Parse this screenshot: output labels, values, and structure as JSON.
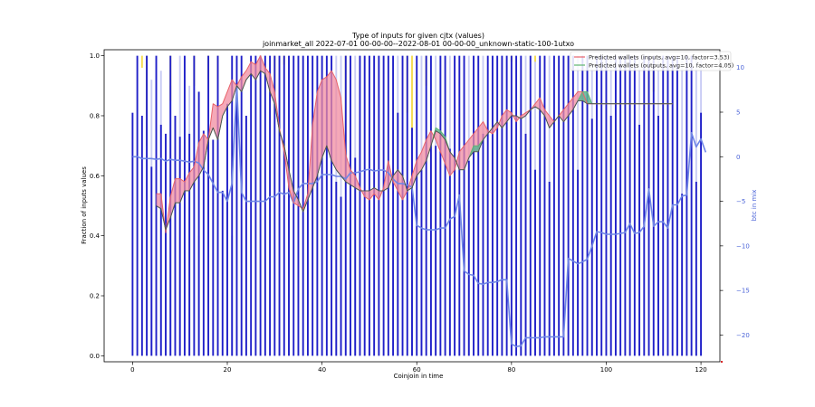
{
  "chart_data": {
    "type": "bar",
    "title": "Type of inputs for given cjtx (values)",
    "subtitle": "joinmarket_all 2022-07-01 00-00-00--2022-08-01 00-00-00_unknown-static-100-1utxo",
    "xlabel": "Coinjoin in time",
    "ylabel": "Fraction of inputs values",
    "ylabel_right": "btc in mix",
    "xlim": [
      -6,
      124
    ],
    "ylim": [
      -0.02,
      1.02
    ],
    "ylim_right": [
      -23,
      12
    ],
    "x_ticks": [
      0,
      20,
      40,
      60,
      80,
      100,
      120
    ],
    "y_ticks": [
      0.0,
      0.2,
      0.4,
      0.6,
      0.8,
      1.0
    ],
    "y_right_ticks": [
      10,
      5,
      0,
      -5,
      -10,
      -15,
      -20
    ],
    "y_right_tick_labels": [
      "10",
      "5",
      "0",
      "−5",
      "−10",
      "−15",
      "−20"
    ],
    "legend_position": "top-right",
    "legend": [
      {
        "label": "Predicted wallets (inputs, avg=10, factor=3.53)",
        "color": "#e8636a"
      },
      {
        "label": "Predicted wallets (outputs, avg=10, factor=4.05)",
        "color": "#5fb56e"
      }
    ],
    "colors": {
      "blue_bars": "#1f1fc8",
      "light_bars": "#c9ccf5",
      "yellow_bars": "#f6dc50",
      "btc_line": "#6f86e6",
      "inputs_line": "#e8636a",
      "inputs_fill": "#f28ca0",
      "outputs_line": "#5fb56e",
      "outputs_fill": "#5fb594",
      "mean_line": "#4d4d4d"
    },
    "bars_x_range": [
      0,
      120
    ],
    "blue_bar_heights": [
      0.81,
      1.0,
      0.8,
      1.0,
      0.63,
      1.0,
      0.77,
      0.74,
      1.0,
      0.8,
      0.73,
      1.0,
      0.74,
      1.0,
      0.88,
      0.75,
      1.0,
      0.72,
      1.0,
      0.55,
      0.84,
      1.0,
      1.0,
      1.0,
      0.8,
      1.0,
      1.0,
      1.0,
      1.0,
      1.0,
      1.0,
      1.0,
      1.0,
      1.0,
      1.0,
      1.0,
      1.0,
      1.0,
      1.0,
      1.0,
      1.0,
      1.0,
      1.0,
      0.58,
      0.53,
      1.0,
      1.0,
      0.66,
      1.0,
      1.0,
      1.0,
      1.0,
      1.0,
      1.0,
      1.0,
      1.0,
      0.81,
      1.0,
      1.0,
      0.76,
      1.0,
      0.62,
      1.0,
      1.0,
      0.7,
      1.0,
      1.0,
      0.69,
      1.0,
      1.0,
      1.0,
      0.65,
      1.0,
      1.0,
      0.74,
      1.0,
      1.0,
      1.0,
      1.0,
      1.0,
      1.0,
      1.0,
      1.0,
      0.74,
      1.0,
      0.62,
      1.0,
      1.0,
      0.58,
      1.0,
      1.0,
      1.0,
      1.0,
      1.0,
      0.62,
      1.0,
      1.0,
      0.79,
      1.0,
      1.0,
      1.0,
      0.8,
      1.0,
      1.0,
      1.0,
      1.0,
      1.0,
      0.77,
      1.0,
      1.0,
      1.0,
      0.8,
      1.0,
      1.0,
      1.0,
      1.0,
      0.54,
      1.0,
      1.0,
      0.58,
      0.81
    ],
    "light_bar_heights": [
      0,
      0,
      0,
      0,
      0.92,
      0,
      0.95,
      0,
      0.9,
      0,
      1.0,
      0,
      0.9,
      0,
      0.4,
      0,
      0,
      0,
      0,
      0,
      0,
      0.4,
      0.1,
      0,
      0,
      0,
      0,
      0,
      0,
      0,
      0,
      0,
      0,
      0,
      0,
      0,
      0,
      0,
      0,
      0,
      0,
      0,
      0,
      1.0,
      1.0,
      0,
      0,
      1.0,
      0,
      0,
      0,
      0,
      0,
      0,
      0,
      0,
      1.0,
      0,
      0,
      1.0,
      0,
      1.0,
      0,
      0,
      1.0,
      0,
      0,
      1.0,
      0,
      0,
      0,
      1.0,
      0,
      0,
      1.0,
      0,
      0,
      0,
      0,
      0,
      0,
      0,
      0,
      1.0,
      0,
      1.0,
      0,
      0,
      1.0,
      0,
      0,
      0,
      0,
      0,
      1.0,
      0,
      0,
      1.0,
      0,
      0,
      0,
      1.0,
      0,
      0,
      0,
      0,
      0,
      1.0,
      0,
      0,
      0,
      1.0,
      0,
      0,
      0,
      0,
      1.0,
      0,
      0,
      1.0,
      1.0
    ],
    "yellow_bars": [
      {
        "x": 2,
        "from": 0.96,
        "to": 1.0
      },
      {
        "x": 3,
        "from": 0.7,
        "to": 1.0
      },
      {
        "x": 8,
        "from": 0.85,
        "to": 1.0
      },
      {
        "x": 13,
        "from": 0.9,
        "to": 1.0
      },
      {
        "x": 16,
        "from": 0.92,
        "to": 1.0
      },
      {
        "x": 18,
        "from": 0.92,
        "to": 1.0
      },
      {
        "x": 30,
        "from": 0.88,
        "to": 1.0
      },
      {
        "x": 32,
        "from": 0.97,
        "to": 1.0
      },
      {
        "x": 45,
        "from": 0.6,
        "to": 1.0
      },
      {
        "x": 58,
        "from": 0.81,
        "to": 1.0
      },
      {
        "x": 59,
        "from": 0.75,
        "to": 1.0
      },
      {
        "x": 62,
        "from": 0.9,
        "to": 1.0
      },
      {
        "x": 80,
        "from": 0.98,
        "to": 1.0
      },
      {
        "x": 85,
        "from": 0.98,
        "to": 1.0
      },
      {
        "x": 109,
        "from": 0.7,
        "to": 1.0
      },
      {
        "x": 110,
        "from": 0.88,
        "to": 1.0
      }
    ],
    "btc_in_mix_x_range": [
      0,
      121
    ],
    "btc_in_mix": [
      0,
      0,
      -0.2,
      -0.2,
      -0.2,
      -0.3,
      -0.2,
      -0.5,
      -0.3,
      -0.4,
      -0.4,
      -0.5,
      -0.6,
      -0.5,
      -0.7,
      -1.5,
      -2,
      -3,
      -4,
      -4,
      -5,
      -3,
      8,
      -4,
      -5,
      -5,
      -5,
      -5,
      -5,
      -4.5,
      -4.5,
      -4,
      -4.2,
      -4,
      -5.2,
      -3.6,
      -3,
      -3,
      -3,
      -2.8,
      -2,
      -2,
      -2,
      -2.2,
      -2.2,
      -2.5,
      -1.8,
      -1.8,
      -1.7,
      -1.5,
      -1.4,
      -1.6,
      -1.5,
      -1.5,
      -1.8,
      -2.5,
      -3,
      -3,
      -3.2,
      -3.4,
      -7.7,
      -8,
      -8.2,
      -8.2,
      -8.2,
      -8,
      -8,
      -7,
      -6.7,
      -4.3,
      -12.8,
      -13.2,
      -13.3,
      -14.2,
      -14.3,
      -14.1,
      -14.1,
      -14,
      -13.8,
      -13.8,
      -21,
      -21.3,
      -21.2,
      -20.3,
      -20.3,
      -20.3,
      -20.3,
      -20.2,
      -20.2,
      -20.2,
      -20.2,
      -20.2,
      -11.4,
      -11.7,
      -12,
      -11.8,
      -11.5,
      -10,
      -8.4,
      -8.5,
      -8.7,
      -8.7,
      -8.7,
      -8.6,
      -8.5,
      -7.5,
      -8.6,
      -8.5,
      -7.8,
      -3.6,
      -7.8,
      -7.3,
      -7.3,
      -8,
      -5.4,
      -5.4,
      -4.4,
      -4.3,
      2.7,
      1.1,
      2,
      0.5
    ],
    "mean_x_range": [
      5,
      114
    ],
    "mean_values": [
      0.5,
      0.49,
      0.42,
      0.46,
      0.51,
      0.51,
      0.55,
      0.55,
      0.58,
      0.6,
      0.63,
      0.72,
      0.76,
      0.72,
      0.8,
      0.83,
      0.85,
      0.9,
      0.88,
      0.92,
      0.94,
      0.92,
      0.95,
      0.94,
      0.88,
      0.84,
      0.75,
      0.7,
      0.62,
      0.55,
      0.52,
      0.48,
      0.52,
      0.56,
      0.6,
      0.66,
      0.7,
      0.65,
      0.62,
      0.6,
      0.58,
      0.57,
      0.56,
      0.55,
      0.55,
      0.55,
      0.56,
      0.55,
      0.55,
      0.56,
      0.6,
      0.62,
      0.6,
      0.55,
      0.56,
      0.6,
      0.62,
      0.65,
      0.7,
      0.75,
      0.74,
      0.72,
      0.68,
      0.66,
      0.62,
      0.62,
      0.66,
      0.68,
      0.68,
      0.72,
      0.74,
      0.76,
      0.78,
      0.76,
      0.78,
      0.8,
      0.8,
      0.79,
      0.8,
      0.82,
      0.83,
      0.82,
      0.8,
      0.76,
      0.78,
      0.8,
      0.78,
      0.8,
      0.82,
      0.85,
      0.85,
      0.84,
      0.84,
      0.84,
      0.84,
      0.84,
      0.84,
      0.84,
      0.84,
      0.84,
      0.84,
      0.84,
      0.84,
      0.84,
      0.84,
      0.84,
      0.84,
      0.84,
      0.84,
      0.84
    ],
    "inputs_x_range": [
      5,
      114
    ],
    "inputs_values": [
      0.54,
      0.54,
      0.41,
      0.53,
      0.59,
      0.59,
      0.58,
      0.61,
      0.63,
      0.71,
      0.74,
      0.72,
      0.84,
      0.83,
      0.84,
      0.88,
      0.92,
      0.9,
      0.93,
      0.95,
      0.98,
      0.97,
      1.0,
      0.96,
      0.94,
      0.88,
      0.76,
      0.68,
      0.56,
      0.51,
      0.5,
      0.49,
      0.54,
      0.77,
      0.88,
      0.92,
      0.93,
      0.95,
      0.92,
      0.86,
      0.67,
      0.62,
      0.6,
      0.56,
      0.53,
      0.52,
      0.54,
      0.52,
      0.56,
      0.65,
      0.58,
      0.55,
      0.52,
      0.55,
      0.6,
      0.65,
      0.68,
      0.72,
      0.75,
      0.72,
      0.68,
      0.64,
      0.6,
      0.62,
      0.68,
      0.7,
      0.72,
      0.74,
      0.76,
      0.78,
      0.75,
      0.74,
      0.76,
      0.8,
      0.82,
      0.81,
      0.78,
      0.8,
      0.81,
      0.82,
      0.84,
      0.86,
      0.82,
      0.8,
      0.78,
      0.8,
      0.82,
      0.84,
      0.86,
      0.88,
      0.88,
      0.84,
      0.84,
      0.84,
      0.84,
      0.84,
      0.84,
      0.84,
      0.84,
      0.84,
      0.84,
      0.84,
      0.84,
      0.84,
      0.84,
      0.84,
      0.84,
      0.84,
      0.84,
      0.84
    ],
    "outputs_x_range": [
      5,
      114
    ],
    "outputs_values": [
      0.5,
      0.49,
      0.42,
      0.46,
      0.51,
      0.51,
      0.55,
      0.55,
      0.58,
      0.6,
      0.63,
      0.72,
      0.76,
      0.72,
      0.8,
      0.83,
      0.85,
      0.9,
      0.88,
      0.92,
      0.94,
      0.92,
      0.95,
      0.94,
      0.88,
      0.84,
      0.75,
      0.7,
      0.62,
      0.55,
      0.52,
      0.48,
      0.52,
      0.56,
      0.6,
      0.66,
      0.7,
      0.65,
      0.62,
      0.6,
      0.58,
      0.57,
      0.56,
      0.55,
      0.55,
      0.55,
      0.56,
      0.55,
      0.55,
      0.56,
      0.6,
      0.62,
      0.6,
      0.55,
      0.56,
      0.6,
      0.62,
      0.65,
      0.7,
      0.76,
      0.75,
      0.73,
      0.68,
      0.66,
      0.62,
      0.62,
      0.66,
      0.7,
      0.7,
      0.72,
      0.74,
      0.76,
      0.78,
      0.76,
      0.78,
      0.8,
      0.8,
      0.79,
      0.8,
      0.82,
      0.83,
      0.82,
      0.8,
      0.76,
      0.78,
      0.8,
      0.78,
      0.8,
      0.82,
      0.85,
      0.88,
      0.88,
      0.84,
      0.84,
      0.84,
      0.84,
      0.84,
      0.84,
      0.84,
      0.84,
      0.84,
      0.84,
      0.84,
      0.84,
      0.84,
      0.84,
      0.84,
      0.84,
      0.84,
      0.84
    ]
  }
}
